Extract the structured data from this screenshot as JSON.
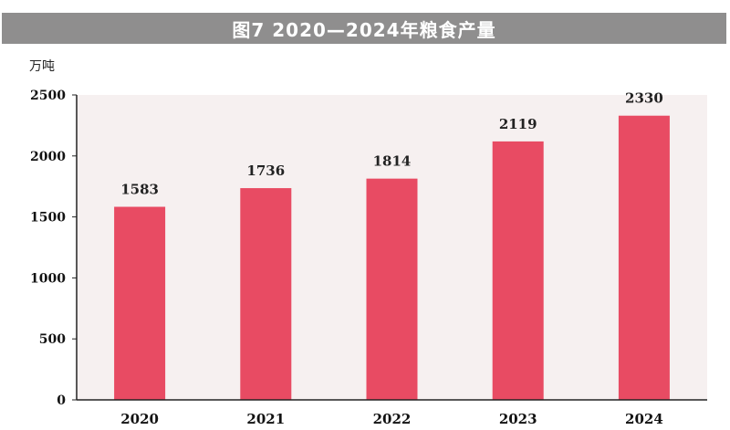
{
  "title": "图7 2020—2024年粮食产量",
  "unit": "万吨",
  "colors": {
    "bar": "#e84b63",
    "plot_background": "#f6f0f0",
    "title_bar": "#8f8e8e"
  },
  "chart_data": {
    "type": "bar",
    "categories": [
      "2020",
      "2021",
      "2022",
      "2023",
      "2024"
    ],
    "values": [
      1583,
      1736,
      1814,
      2119,
      2330
    ],
    "ylim": [
      0,
      2500
    ],
    "yticks": [
      0,
      500,
      1000,
      1500,
      2000,
      2500
    ],
    "ylabel": "万吨",
    "xlabel": "",
    "grid": false,
    "data_labels": true
  }
}
